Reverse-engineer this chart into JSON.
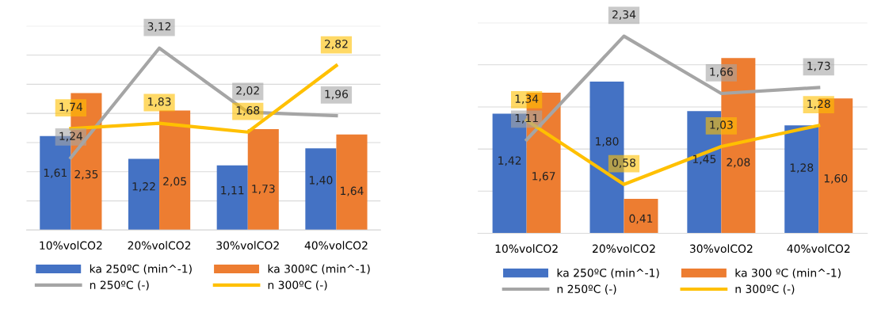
{
  "chart_data": [
    {
      "type": "bar",
      "categories": [
        "10%volCO2",
        "20%volCO2",
        "30%volCO2",
        "40%volCO2"
      ],
      "ylim": [
        0,
        3.5
      ],
      "yticks": [
        {
          "value": 0,
          "label": null
        },
        {
          "value": 0.5,
          "label": null
        },
        {
          "value": 1,
          "label": null
        },
        {
          "value": 1.5,
          "label": null
        },
        {
          "value": 2,
          "label": null
        },
        {
          "value": 2.5,
          "label": null
        },
        {
          "value": 3,
          "label": null
        },
        {
          "value": 3.5,
          "label": null
        }
      ],
      "tick_labels": "x",
      "grid": "y",
      "legend": "bottom",
      "marker": "none",
      "line_style": "solid",
      "series": [
        {
          "name": "ka 250ºC (min^-1)",
          "color": "#4472c4",
          "values": [
            1.61,
            1.22,
            1.11,
            1.4
          ],
          "value_labels": [
            "1,61",
            "1,22",
            "1,11",
            "1,40"
          ]
        },
        {
          "name": "ka 300ºC (min^-1)",
          "color": "#ed7d31",
          "values": [
            2.35,
            2.05,
            1.73,
            1.64
          ],
          "value_labels": [
            "2,35",
            "2,05",
            "1,73",
            "1,64"
          ]
        },
        {
          "name": "n 250ºC (-)",
          "type": "line",
          "color": "#a5a5a5",
          "values": [
            1.24,
            3.12,
            2.02,
            1.96
          ],
          "value_labels": [
            "1,24",
            "3,12",
            "2,02",
            "1,96"
          ]
        },
        {
          "name": "n 300ºC (-)",
          "type": "line",
          "color": "#ffc000",
          "values": [
            1.74,
            1.83,
            1.68,
            2.82
          ],
          "value_labels": [
            "1,74",
            "1,83",
            "1,68",
            "2,82"
          ]
        }
      ]
    },
    {
      "type": "bar",
      "categories": [
        "10%volCO2",
        "20%volCO2",
        "30%volCO2",
        "40%volCO2"
      ],
      "ylim": [
        0,
        2.5
      ],
      "yticks": [
        {
          "value": 0,
          "label": null
        },
        {
          "value": 0.5,
          "label": null
        },
        {
          "value": 1,
          "label": null
        },
        {
          "value": 1.5,
          "label": null
        },
        {
          "value": 2,
          "label": null
        },
        {
          "value": 2.5,
          "label": null
        }
      ],
      "tick_labels": "x",
      "grid": "y",
      "legend": "bottom",
      "marker": "none",
      "line_style": "solid",
      "series": [
        {
          "name": "ka 250ºC (min^-1)",
          "color": "#4472c4",
          "values": [
            1.42,
            1.8,
            1.45,
            1.28
          ],
          "value_labels": [
            "1,42",
            "1,80",
            "1,45",
            "1,28"
          ]
        },
        {
          "name": "ka 300 ºC (min^-1)",
          "color": "#ed7d31",
          "values": [
            1.67,
            0.41,
            2.08,
            1.6
          ],
          "value_labels": [
            "1,67",
            "0,41",
            "2,08",
            "1,60"
          ]
        },
        {
          "name": "n 250ºC (-)",
          "type": "line",
          "color": "#a5a5a5",
          "values": [
            1.11,
            2.34,
            1.66,
            1.73
          ],
          "value_labels": [
            "1,11",
            "2,34",
            "1,66",
            "1,73"
          ]
        },
        {
          "name": "n 300ºC (-)",
          "type": "line",
          "color": "#ffc000",
          "values": [
            1.34,
            0.58,
            1.03,
            1.28
          ],
          "value_labels": [
            "1,34",
            "0,58",
            "1,03",
            "1,28"
          ]
        }
      ]
    }
  ]
}
